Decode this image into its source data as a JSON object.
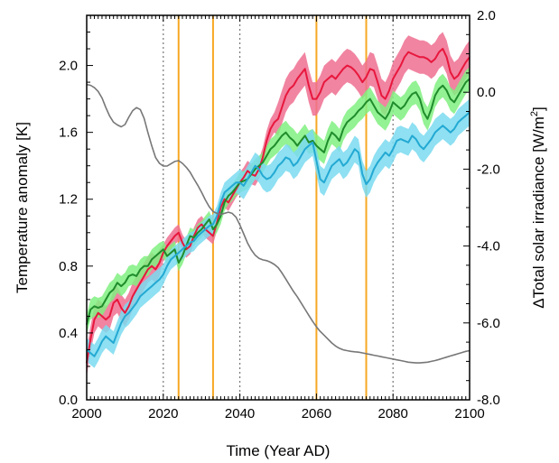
{
  "chart_data": {
    "type": "line",
    "xlabel": "Time (Year AD)",
    "ylabel_left": "Temperature anomaly [K]",
    "ylabel_right_parts": [
      "ΔTotal solar irradiance [W/m",
      "2",
      "]"
    ],
    "xlim": [
      2000,
      2100
    ],
    "ylim_left": [
      0.0,
      2.3
    ],
    "ylim_right": [
      -8.0,
      2.0
    ],
    "x_ticks": [
      "2000",
      "2020",
      "2040",
      "2060",
      "2080",
      "2100"
    ],
    "y_left_ticks": [
      "0.0",
      "0.4",
      "0.8",
      "1.2",
      "1.6",
      "2.0"
    ],
    "y_right_ticks": [
      "-8.0",
      "-6.0",
      "-4.0",
      "-2.0",
      "0.0",
      "2.0"
    ],
    "vertical_lines": {
      "dotted_gray": [
        2020,
        2040,
        2060,
        2080
      ],
      "orange": [
        2024,
        2033,
        2060,
        2073
      ]
    },
    "colors": {
      "red": "#e8173d",
      "red_fill": "#ee6f91",
      "green": "#1f8c2c",
      "green_fill": "#80f080",
      "blue": "#23a9d3",
      "blue_fill": "#7adaf0",
      "gray": "#777777",
      "orange": "#f7a823"
    },
    "series": [
      {
        "color": "red",
        "x": [
          2000,
          2001,
          2002,
          2003,
          2004,
          2005,
          2006,
          2007,
          2008,
          2009,
          2010,
          2011,
          2012,
          2013,
          2014,
          2015,
          2016,
          2017,
          2018,
          2019,
          2020,
          2021,
          2022,
          2023,
          2024,
          2025,
          2026,
          2027,
          2028,
          2029,
          2030,
          2031,
          2032,
          2033,
          2034,
          2035,
          2036,
          2037,
          2038,
          2039,
          2040,
          2041,
          2042,
          2043,
          2044,
          2045,
          2046,
          2047,
          2048,
          2049,
          2050,
          2051,
          2052,
          2053,
          2054,
          2055,
          2056,
          2057,
          2058,
          2059,
          2060,
          2061,
          2062,
          2063,
          2064,
          2065,
          2066,
          2067,
          2068,
          2069,
          2070,
          2071,
          2072,
          2073,
          2074,
          2075,
          2076,
          2077,
          2078,
          2079,
          2080,
          2081,
          2082,
          2083,
          2084,
          2085,
          2086,
          2087,
          2088,
          2089,
          2090,
          2091,
          2092,
          2093,
          2094,
          2095,
          2096,
          2097,
          2098,
          2099,
          2100
        ],
        "y": [
          0.22,
          0.36,
          0.48,
          0.52,
          0.5,
          0.48,
          0.5,
          0.58,
          0.6,
          0.55,
          0.52,
          0.56,
          0.62,
          0.66,
          0.7,
          0.74,
          0.78,
          0.8,
          0.78,
          0.82,
          0.88,
          0.92,
          0.95,
          0.98,
          1.0,
          0.94,
          0.9,
          0.92,
          0.98,
          1.03,
          1.05,
          1.02,
          1.0,
          0.98,
          1.06,
          1.15,
          1.2,
          1.18,
          1.22,
          1.26,
          1.3,
          1.33,
          1.37,
          1.35,
          1.34,
          1.38,
          1.45,
          1.55,
          1.62,
          1.66,
          1.68,
          1.75,
          1.82,
          1.86,
          1.88,
          1.92,
          1.95,
          1.98,
          1.88,
          1.8,
          1.8,
          1.84,
          1.9,
          1.92,
          1.94,
          1.92,
          1.95,
          1.98,
          2.0,
          1.99,
          1.97,
          1.94,
          1.9,
          1.93,
          1.98,
          1.97,
          1.9,
          1.82,
          1.8,
          1.85,
          1.92,
          1.96,
          2.0,
          2.05,
          2.08,
          2.07,
          2.06,
          2.05,
          2.05,
          2.04,
          2.02,
          2.04,
          2.08,
          2.1,
          2.05,
          1.96,
          1.92,
          1.94,
          1.98,
          2.02,
          2.05
        ],
        "band_halfwidth": [
          0.08,
          0.08,
          0.08,
          0.08,
          0.08,
          0.08,
          0.08,
          0.08,
          0.08,
          0.08,
          0.08,
          0.08,
          0.08,
          0.08,
          0.08,
          0.08,
          0.08,
          0.08,
          0.08,
          0.08,
          0.05,
          0.05,
          0.05,
          0.05,
          0.05,
          0.05,
          0.05,
          0.05,
          0.05,
          0.05,
          0.05,
          0.05,
          0.05,
          0.05,
          0.05,
          0.05,
          0.05,
          0.05,
          0.05,
          0.05,
          0.06,
          0.06,
          0.06,
          0.06,
          0.06,
          0.06,
          0.06,
          0.06,
          0.06,
          0.06,
          0.1,
          0.1,
          0.1,
          0.1,
          0.1,
          0.1,
          0.1,
          0.1,
          0.1,
          0.1,
          0.1,
          0.1,
          0.1,
          0.1,
          0.1,
          0.1,
          0.1,
          0.1,
          0.1,
          0.1,
          0.1,
          0.1,
          0.1,
          0.1,
          0.1,
          0.1,
          0.1,
          0.1,
          0.1,
          0.1,
          0.1,
          0.1,
          0.1,
          0.1,
          0.1,
          0.1,
          0.1,
          0.1,
          0.1,
          0.1,
          0.1,
          0.1,
          0.1,
          0.1,
          0.1,
          0.1,
          0.1,
          0.1,
          0.1,
          0.1,
          0.1
        ]
      },
      {
        "color": "green",
        "x": [
          2000,
          2001,
          2002,
          2003,
          2004,
          2005,
          2006,
          2007,
          2008,
          2009,
          2010,
          2011,
          2012,
          2013,
          2014,
          2015,
          2016,
          2017,
          2018,
          2019,
          2020,
          2021,
          2022,
          2023,
          2024,
          2025,
          2026,
          2027,
          2028,
          2029,
          2030,
          2031,
          2032,
          2033,
          2034,
          2035,
          2036,
          2037,
          2038,
          2039,
          2040,
          2041,
          2042,
          2043,
          2044,
          2045,
          2046,
          2047,
          2048,
          2049,
          2050,
          2051,
          2052,
          2053,
          2054,
          2055,
          2056,
          2057,
          2058,
          2059,
          2060,
          2061,
          2062,
          2063,
          2064,
          2065,
          2066,
          2067,
          2068,
          2069,
          2070,
          2071,
          2072,
          2073,
          2074,
          2075,
          2076,
          2077,
          2078,
          2079,
          2080,
          2081,
          2082,
          2083,
          2084,
          2085,
          2086,
          2087,
          2088,
          2089,
          2090,
          2091,
          2092,
          2093,
          2094,
          2095,
          2096,
          2097,
          2098,
          2099,
          2100
        ],
        "y": [
          0.45,
          0.54,
          0.56,
          0.55,
          0.56,
          0.6,
          0.64,
          0.66,
          0.7,
          0.68,
          0.7,
          0.74,
          0.75,
          0.74,
          0.78,
          0.8,
          0.8,
          0.84,
          0.86,
          0.88,
          0.9,
          0.86,
          0.88,
          0.9,
          0.82,
          0.86,
          0.92,
          0.98,
          0.97,
          1.0,
          1.02,
          1.05,
          1.08,
          1.02,
          1.05,
          1.1,
          1.18,
          1.22,
          1.24,
          1.27,
          1.3,
          1.31,
          1.32,
          1.35,
          1.38,
          1.4,
          1.42,
          1.46,
          1.5,
          1.52,
          1.55,
          1.58,
          1.6,
          1.57,
          1.55,
          1.52,
          1.55,
          1.58,
          1.54,
          1.55,
          1.52,
          1.5,
          1.48,
          1.55,
          1.6,
          1.58,
          1.55,
          1.62,
          1.66,
          1.68,
          1.7,
          1.73,
          1.75,
          1.78,
          1.8,
          1.76,
          1.72,
          1.7,
          1.68,
          1.72,
          1.78,
          1.76,
          1.74,
          1.76,
          1.8,
          1.83,
          1.84,
          1.8,
          1.72,
          1.68,
          1.74,
          1.82,
          1.86,
          1.88,
          1.85,
          1.8,
          1.78,
          1.82,
          1.86,
          1.9,
          1.92
        ],
        "band_halfwidth": [
          0.06,
          0.06,
          0.06,
          0.06,
          0.06,
          0.06,
          0.06,
          0.06,
          0.06,
          0.06,
          0.06,
          0.06,
          0.06,
          0.06,
          0.06,
          0.06,
          0.06,
          0.06,
          0.06,
          0.06,
          0.05,
          0.05,
          0.05,
          0.05,
          0.05,
          0.05,
          0.05,
          0.05,
          0.05,
          0.05,
          0.05,
          0.05,
          0.05,
          0.05,
          0.05,
          0.05,
          0.05,
          0.05,
          0.05,
          0.05,
          0.06,
          0.06,
          0.06,
          0.06,
          0.06,
          0.06,
          0.06,
          0.06,
          0.06,
          0.06,
          0.07,
          0.07,
          0.07,
          0.07,
          0.07,
          0.07,
          0.07,
          0.07,
          0.07,
          0.07,
          0.07,
          0.07,
          0.07,
          0.07,
          0.07,
          0.07,
          0.07,
          0.07,
          0.07,
          0.07,
          0.07,
          0.07,
          0.07,
          0.07,
          0.07,
          0.07,
          0.07,
          0.07,
          0.07,
          0.07,
          0.07,
          0.07,
          0.07,
          0.07,
          0.07,
          0.07,
          0.07,
          0.07,
          0.07,
          0.07,
          0.07,
          0.07,
          0.07,
          0.07,
          0.07,
          0.07,
          0.07,
          0.07,
          0.07,
          0.07,
          0.07
        ]
      },
      {
        "color": "blue",
        "x": [
          2000,
          2001,
          2002,
          2003,
          2004,
          2005,
          2006,
          2007,
          2008,
          2009,
          2010,
          2011,
          2012,
          2013,
          2014,
          2015,
          2016,
          2017,
          2018,
          2019,
          2020,
          2021,
          2022,
          2023,
          2024,
          2025,
          2026,
          2027,
          2028,
          2029,
          2030,
          2031,
          2032,
          2033,
          2034,
          2035,
          2036,
          2037,
          2038,
          2039,
          2040,
          2041,
          2042,
          2043,
          2044,
          2045,
          2046,
          2047,
          2048,
          2049,
          2050,
          2051,
          2052,
          2053,
          2054,
          2055,
          2056,
          2057,
          2058,
          2059,
          2060,
          2061,
          2062,
          2063,
          2064,
          2065,
          2066,
          2067,
          2068,
          2069,
          2070,
          2071,
          2072,
          2073,
          2074,
          2075,
          2076,
          2077,
          2078,
          2079,
          2080,
          2081,
          2082,
          2083,
          2084,
          2085,
          2086,
          2087,
          2088,
          2089,
          2090,
          2091,
          2092,
          2093,
          2094,
          2095,
          2096,
          2097,
          2098,
          2099,
          2100
        ],
        "y": [
          0.3,
          0.28,
          0.26,
          0.3,
          0.35,
          0.38,
          0.36,
          0.34,
          0.4,
          0.46,
          0.5,
          0.52,
          0.55,
          0.58,
          0.62,
          0.64,
          0.66,
          0.68,
          0.7,
          0.72,
          0.75,
          0.8,
          0.84,
          0.86,
          0.88,
          0.9,
          0.92,
          0.94,
          0.95,
          0.98,
          1.0,
          1.02,
          1.04,
          1.05,
          1.1,
          1.18,
          1.24,
          1.26,
          1.28,
          1.3,
          1.3,
          1.28,
          1.32,
          1.36,
          1.4,
          1.38,
          1.34,
          1.32,
          1.33,
          1.36,
          1.4,
          1.42,
          1.45,
          1.44,
          1.4,
          1.42,
          1.46,
          1.5,
          1.52,
          1.54,
          1.43,
          1.32,
          1.3,
          1.35,
          1.4,
          1.42,
          1.44,
          1.4,
          1.42,
          1.46,
          1.5,
          1.48,
          1.35,
          1.29,
          1.32,
          1.38,
          1.42,
          1.45,
          1.48,
          1.46,
          1.5,
          1.55,
          1.56,
          1.55,
          1.54,
          1.58,
          1.56,
          1.52,
          1.5,
          1.53,
          1.56,
          1.6,
          1.62,
          1.64,
          1.62,
          1.6,
          1.62,
          1.66,
          1.68,
          1.7,
          1.72
        ],
        "band_halfwidth": [
          0.07,
          0.07,
          0.07,
          0.07,
          0.07,
          0.07,
          0.07,
          0.07,
          0.07,
          0.07,
          0.07,
          0.07,
          0.07,
          0.07,
          0.07,
          0.07,
          0.07,
          0.07,
          0.07,
          0.07,
          0.06,
          0.06,
          0.06,
          0.06,
          0.06,
          0.06,
          0.06,
          0.06,
          0.06,
          0.06,
          0.06,
          0.06,
          0.06,
          0.06,
          0.06,
          0.06,
          0.06,
          0.06,
          0.06,
          0.06,
          0.08,
          0.08,
          0.08,
          0.08,
          0.08,
          0.08,
          0.08,
          0.08,
          0.08,
          0.08,
          0.08,
          0.08,
          0.08,
          0.08,
          0.08,
          0.08,
          0.08,
          0.08,
          0.08,
          0.08,
          0.08,
          0.08,
          0.08,
          0.08,
          0.08,
          0.08,
          0.08,
          0.08,
          0.08,
          0.08,
          0.08,
          0.08,
          0.08,
          0.08,
          0.08,
          0.08,
          0.08,
          0.08,
          0.08,
          0.08,
          0.08,
          0.08,
          0.08,
          0.08,
          0.08,
          0.08,
          0.08,
          0.08,
          0.08,
          0.08,
          0.08,
          0.08,
          0.08,
          0.08,
          0.08,
          0.08,
          0.08,
          0.08,
          0.08,
          0.08,
          0.08
        ]
      },
      {
        "color": "gray",
        "axis": "right",
        "x": [
          2000,
          2001,
          2002,
          2003,
          2004,
          2005,
          2006,
          2007,
          2008,
          2009,
          2010,
          2011,
          2012,
          2013,
          2014,
          2015,
          2016,
          2017,
          2018,
          2019,
          2020,
          2021,
          2022,
          2023,
          2024,
          2025,
          2026,
          2027,
          2028,
          2029,
          2030,
          2031,
          2032,
          2033,
          2034,
          2035,
          2036,
          2037,
          2038,
          2039,
          2040,
          2041,
          2042,
          2043,
          2044,
          2045,
          2046,
          2047,
          2048,
          2049,
          2050,
          2051,
          2052,
          2053,
          2054,
          2055,
          2056,
          2057,
          2058,
          2059,
          2060,
          2061,
          2062,
          2063,
          2064,
          2065,
          2066,
          2067,
          2068,
          2069,
          2070,
          2071,
          2072,
          2073,
          2074,
          2075,
          2076,
          2077,
          2078,
          2079,
          2080,
          2081,
          2082,
          2083,
          2084,
          2085,
          2086,
          2087,
          2088,
          2089,
          2090,
          2091,
          2092,
          2093,
          2094,
          2095,
          2096,
          2097,
          2098,
          2099,
          2100
        ],
        "y": [
          0.2,
          0.18,
          0.12,
          0.02,
          -0.15,
          -0.4,
          -0.62,
          -0.78,
          -0.85,
          -0.9,
          -0.84,
          -0.65,
          -0.48,
          -0.4,
          -0.45,
          -0.68,
          -1.05,
          -1.4,
          -1.7,
          -1.85,
          -1.92,
          -1.92,
          -1.86,
          -1.8,
          -1.78,
          -1.85,
          -1.95,
          -2.08,
          -2.25,
          -2.42,
          -2.6,
          -2.8,
          -2.98,
          -3.1,
          -3.15,
          -3.18,
          -3.15,
          -3.12,
          -3.15,
          -3.25,
          -3.45,
          -3.68,
          -3.92,
          -4.1,
          -4.24,
          -4.32,
          -4.36,
          -4.38,
          -4.42,
          -4.48,
          -4.56,
          -4.7,
          -4.86,
          -5.02,
          -5.18,
          -5.32,
          -5.48,
          -5.64,
          -5.8,
          -5.96,
          -6.1,
          -6.22,
          -6.32,
          -6.42,
          -6.52,
          -6.6,
          -6.66,
          -6.7,
          -6.72,
          -6.74,
          -6.75,
          -6.76,
          -6.78,
          -6.8,
          -6.82,
          -6.84,
          -6.86,
          -6.88,
          -6.9,
          -6.92,
          -6.94,
          -6.96,
          -6.98,
          -7.0,
          -7.02,
          -7.03,
          -7.04,
          -7.04,
          -7.03,
          -7.02,
          -7.0,
          -6.98,
          -6.95,
          -6.92,
          -6.89,
          -6.86,
          -6.83,
          -6.8,
          -6.77,
          -6.74,
          -6.72
        ]
      }
    ]
  }
}
